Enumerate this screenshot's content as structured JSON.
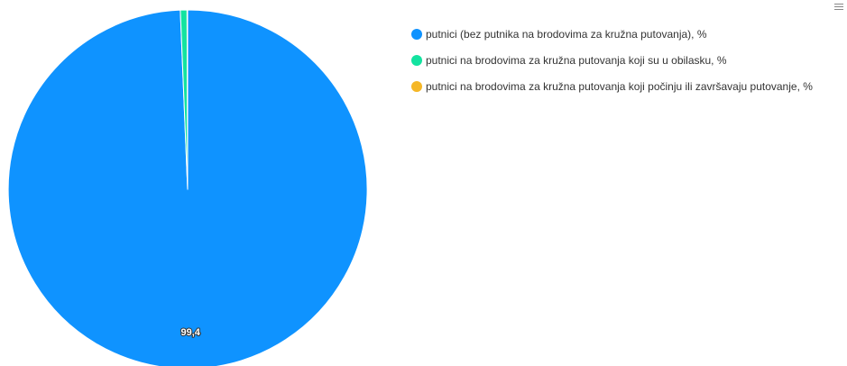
{
  "chart_data": {
    "type": "pie",
    "categories": [
      "putnici (bez putnika na brodovima za kružna putovanja), %",
      "putnici na brodovima za kružna putovanja koji su u obilasku, %",
      "putnici na brodovima za kružna putovanja koji počinju ili završavaju putovanje, %"
    ],
    "values": [
      99.4,
      0.6,
      0.05
    ],
    "data_labels": [
      "99,4",
      "",
      ""
    ],
    "colors": [
      "#0f93ff",
      "#13e3a0",
      "#f5b727"
    ],
    "legend_position": "top-right",
    "title": "",
    "xlabel": "",
    "ylabel": ""
  },
  "toolbar": {
    "menu_icon": "hamburger-menu-icon"
  }
}
